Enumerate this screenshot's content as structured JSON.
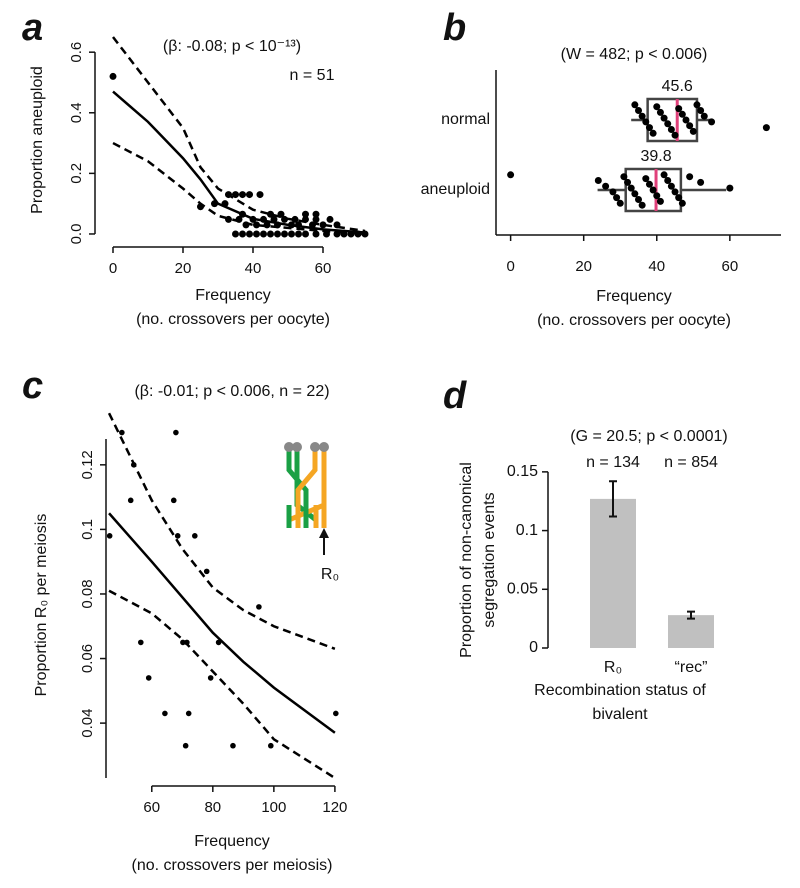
{
  "chart_data": [
    {
      "type": "scatter",
      "panel_label": "a",
      "annotation": "(β: -0.08; p < 10⁻¹³)",
      "sample_size": "n = 51",
      "x_label": [
        "Frequency",
        "(no. crossovers per oocyte)"
      ],
      "y_label": "Proportion aneuploid",
      "color": "#000000",
      "x": [
        0,
        25,
        33,
        35,
        37,
        39,
        42,
        29,
        32,
        37,
        45,
        48,
        55,
        58,
        33,
        36,
        40,
        43,
        46,
        49,
        52,
        55,
        58,
        62,
        38,
        41,
        44,
        47,
        51,
        53,
        57,
        60,
        64,
        35,
        37,
        39,
        41,
        43,
        45,
        47,
        49,
        51,
        53,
        55,
        58,
        61,
        64,
        66,
        68,
        70,
        72
      ],
      "y": [
        0.52,
        0.09,
        0.13,
        0.13,
        0.13,
        0.13,
        0.13,
        0.1,
        0.1,
        0.065,
        0.065,
        0.065,
        0.065,
        0.065,
        0.048,
        0.048,
        0.048,
        0.048,
        0.048,
        0.048,
        0.048,
        0.048,
        0.048,
        0.048,
        0.03,
        0.03,
        0.03,
        0.03,
        0.03,
        0.03,
        0.03,
        0.03,
        0.03,
        0.0,
        0.0,
        0.0,
        0.0,
        0.0,
        0.0,
        0.0,
        0.0,
        0.0,
        0.0,
        0.0,
        0.0,
        0.0,
        0.0,
        0.0,
        0.0,
        0.0,
        0.0
      ],
      "lines": [
        {
          "style": "solid",
          "x": [
            0,
            10,
            20,
            25,
            30,
            40,
            50,
            60,
            72
          ],
          "y": [
            0.47,
            0.37,
            0.25,
            0.18,
            0.1,
            0.05,
            0.03,
            0.015,
            0.005
          ]
        },
        {
          "style": "dashed",
          "x": [
            0,
            10,
            20,
            25,
            30,
            40,
            50,
            60,
            72
          ],
          "y": [
            0.65,
            0.5,
            0.35,
            0.22,
            0.15,
            0.08,
            0.05,
            0.03,
            0.01
          ]
        },
        {
          "style": "dashed",
          "x": [
            0,
            10,
            20,
            25,
            30,
            40,
            50,
            60,
            72
          ],
          "y": [
            0.3,
            0.24,
            0.15,
            0.1,
            0.06,
            0.03,
            0.02,
            0.01,
            0.0
          ]
        }
      ],
      "xlim": [
        -2,
        72
      ],
      "ylim": [
        -0.01,
        0.66
      ],
      "xticks": [
        0,
        20,
        40,
        60
      ],
      "yticks": [
        {
          "value": 0,
          "label": "0.0"
        },
        0.2,
        0.4,
        0.6
      ]
    },
    {
      "type": "box",
      "panel_label": "b",
      "annotation": "(W = 482; p < 0.006)",
      "x_label": [
        "Frequency",
        "(no. crossovers per oocyte)"
      ],
      "categories": [
        "normal",
        "aneuploid"
      ],
      "box_color": "#444444",
      "median_color": "#e0407a",
      "boxes": [
        {
          "whisker_low": 33,
          "q1": 37.5,
          "median": 45.6,
          "q3": 51,
          "whisker_high": 55,
          "points": [
            34,
            35,
            36,
            37,
            38,
            39,
            40,
            41,
            42,
            43,
            44,
            45,
            46,
            47,
            48,
            49,
            50,
            51,
            52,
            53,
            55,
            70
          ]
        },
        {
          "whisker_low": 23.8,
          "q1": 31.5,
          "median": 39.8,
          "q3": 46.6,
          "whisker_high": 59,
          "points": [
            0,
            24,
            26,
            28,
            29,
            30,
            31,
            32,
            33,
            34,
            35,
            36,
            37,
            38,
            39,
            40,
            41,
            42,
            43,
            44,
            45,
            46,
            47,
            49,
            52,
            60
          ]
        }
      ],
      "xlim": [
        -4,
        74
      ],
      "xticks": [
        0,
        20,
        40,
        60
      ]
    },
    {
      "type": "scatter",
      "panel_label": "c",
      "annotation": "(β: -0.01; p < 0.006, n = 22)",
      "x_label": [
        "Frequency",
        "(no. crossovers per meiosis)"
      ],
      "y_label": "Proportion  R₀ per meiosis",
      "inset_label": "R₀",
      "color": "#000000",
      "x": [
        46.2,
        50.2,
        54.1,
        53.1,
        56.4,
        59.0,
        64.3,
        67.9,
        67.2,
        68.5,
        70.2,
        72.1,
        71.1,
        71.5,
        74.1,
        78.0,
        79.3,
        81.9,
        86.6,
        95.1,
        99.0,
        120.3
      ],
      "y": [
        0.098,
        0.13,
        0.12,
        0.109,
        0.065,
        0.054,
        0.043,
        0.13,
        0.109,
        0.098,
        0.065,
        0.043,
        0.033,
        0.065,
        0.098,
        0.087,
        0.054,
        0.065,
        0.033,
        0.076,
        0.033,
        0.043
      ],
      "lines": [
        {
          "style": "solid",
          "x": [
            46,
            60,
            70,
            80,
            90,
            100,
            120
          ],
          "y": [
            0.105,
            0.09,
            0.079,
            0.068,
            0.059,
            0.051,
            0.037
          ]
        },
        {
          "style": "dashed",
          "x": [
            46,
            60,
            70,
            80,
            90,
            100,
            120
          ],
          "y": [
            0.136,
            0.109,
            0.094,
            0.082,
            0.075,
            0.07,
            0.063
          ]
        },
        {
          "style": "dashed",
          "x": [
            46,
            60,
            70,
            80,
            90,
            100,
            120
          ],
          "y": [
            0.081,
            0.074,
            0.066,
            0.056,
            0.046,
            0.035,
            0.023
          ]
        }
      ],
      "xlim": [
        45,
        122
      ],
      "ylim": [
        0.023,
        0.128
      ],
      "xticks": [
        60,
        80,
        100,
        120
      ],
      "yticks": [
        0.04,
        0.06,
        0.08,
        0.1,
        0.12
      ]
    },
    {
      "type": "bar",
      "panel_label": "d",
      "annotation": "(G = 20.5; p < 0.0001)",
      "sample_sizes": [
        "n = 134",
        "n = 854"
      ],
      "y_label": [
        "Proportion of non-canonical",
        "segregation events"
      ],
      "x_label": [
        "Recombination status of",
        "bivalent"
      ],
      "categories": [
        "R₀",
        "“rec”"
      ],
      "values": [
        0.127,
        0.028
      ],
      "errors": [
        0.015,
        0.003
      ],
      "color": "#c0c0c0",
      "ylim": [
        0,
        0.155
      ],
      "yticks": [
        0,
        0.05,
        0.1,
        0.15
      ]
    }
  ]
}
